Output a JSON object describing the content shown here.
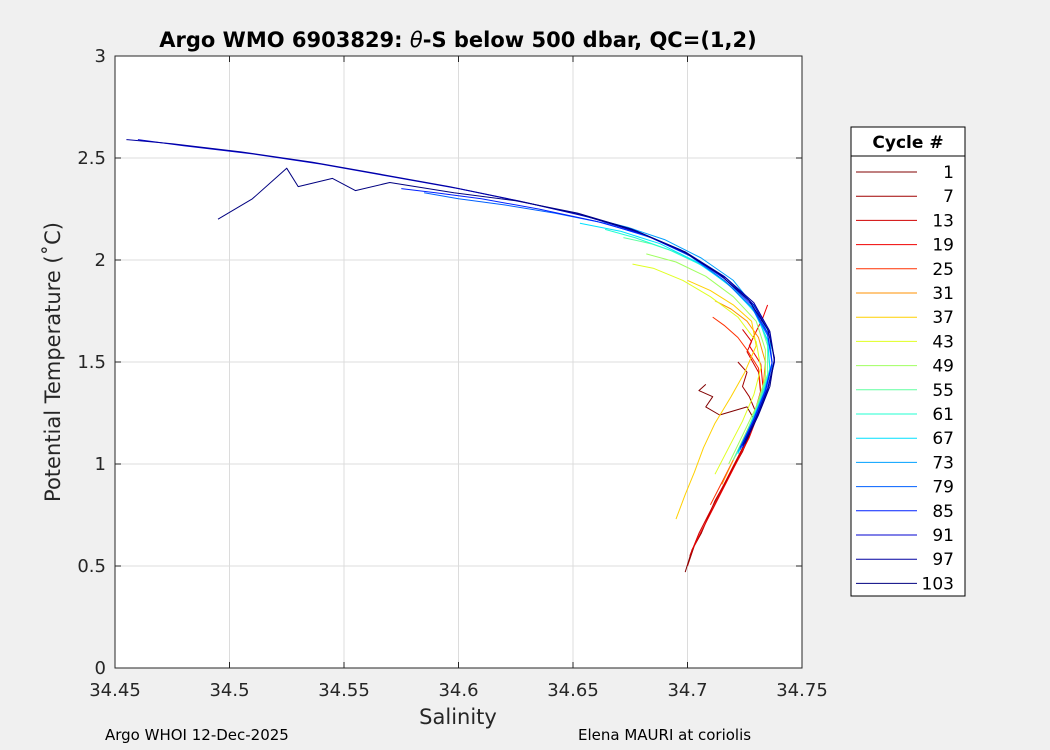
{
  "chart_data": {
    "type": "line",
    "title_prefix": "Argo WMO 6903829: ",
    "title_symbol": "θ",
    "title_suffix": "-S below 500 dbar,  QC=(1,2)",
    "xlabel": "Salinity",
    "ylabel": "Potential Temperature (˚C)",
    "xlim": [
      34.45,
      34.75
    ],
    "ylim": [
      0,
      3
    ],
    "xticks": [
      34.45,
      34.5,
      34.55,
      34.6,
      34.65,
      34.7,
      34.75
    ],
    "xtick_labels": [
      "34.45",
      "34.5",
      "34.55",
      "34.6",
      "34.65",
      "34.7",
      "34.75"
    ],
    "yticks": [
      0,
      0.5,
      1,
      1.5,
      2,
      2.5,
      3
    ],
    "ytick_labels": [
      "0",
      "0.5",
      "1",
      "1.5",
      "2",
      "2.5",
      "3"
    ],
    "grid": true,
    "legend_title": "Cycle #",
    "legend_position": "outside-right",
    "legend": [
      {
        "label": "1",
        "color": "#800000"
      },
      {
        "label": "7",
        "color": "#a00000"
      },
      {
        "label": "13",
        "color": "#d00000"
      },
      {
        "label": "19",
        "color": "#f00000"
      },
      {
        "label": "25",
        "color": "#ff3000"
      },
      {
        "label": "31",
        "color": "#ff9000"
      },
      {
        "label": "37",
        "color": "#ffd000"
      },
      {
        "label": "43",
        "color": "#e0ff20"
      },
      {
        "label": "49",
        "color": "#a0ff60"
      },
      {
        "label": "55",
        "color": "#60ffa0"
      },
      {
        "label": "61",
        "color": "#20ffd0"
      },
      {
        "label": "67",
        "color": "#00e0ff"
      },
      {
        "label": "73",
        "color": "#00a0ff"
      },
      {
        "label": "79",
        "color": "#0060ff"
      },
      {
        "label": "85",
        "color": "#0020ff"
      },
      {
        "label": "91",
        "color": "#0000d0"
      },
      {
        "label": "97",
        "color": "#0000a0"
      },
      {
        "label": "103",
        "color": "#000080"
      }
    ],
    "series": [
      {
        "name": "1",
        "color": "#800000",
        "s": [
          34.699,
          34.702,
          34.706,
          34.709,
          34.712,
          34.716,
          34.72,
          34.724,
          34.727,
          34.729,
          34.726,
          34.714,
          34.708,
          34.711,
          34.705,
          34.708
        ],
        "t": [
          0.47,
          0.58,
          0.66,
          0.74,
          0.82,
          0.9,
          0.98,
          1.06,
          1.14,
          1.22,
          1.28,
          1.24,
          1.28,
          1.33,
          1.36,
          1.39
        ]
      },
      {
        "name": "7",
        "color": "#a00000",
        "s": [
          34.7,
          34.703,
          34.707,
          34.711,
          34.715,
          34.719,
          34.723,
          34.727,
          34.73,
          34.727,
          34.724,
          34.726,
          34.722
        ],
        "t": [
          0.5,
          0.6,
          0.69,
          0.78,
          0.87,
          0.96,
          1.05,
          1.15,
          1.25,
          1.33,
          1.38,
          1.45,
          1.5
        ]
      },
      {
        "name": "13",
        "color": "#d00000",
        "s": [
          34.701,
          34.705,
          34.71,
          34.715,
          34.72,
          34.725,
          34.729,
          34.732,
          34.731,
          34.726,
          34.728,
          34.724
        ],
        "t": [
          0.55,
          0.66,
          0.77,
          0.88,
          0.99,
          1.1,
          1.22,
          1.34,
          1.45,
          1.55,
          1.6,
          1.66
        ]
      },
      {
        "name": "19",
        "color": "#f00000",
        "s": [
          34.702,
          34.707,
          34.712,
          34.717,
          34.722,
          34.727,
          34.731,
          34.733,
          34.732,
          34.727,
          34.73,
          34.733,
          34.735
        ],
        "t": [
          0.58,
          0.69,
          0.8,
          0.91,
          1.02,
          1.13,
          1.25,
          1.37,
          1.49,
          1.58,
          1.65,
          1.72,
          1.78
        ]
      },
      {
        "name": "25",
        "color": "#ff3000",
        "s": [
          34.71,
          34.715,
          34.72,
          34.725,
          34.729,
          34.732,
          34.731,
          34.726,
          34.722,
          34.716,
          34.711
        ],
        "t": [
          0.8,
          0.91,
          1.02,
          1.13,
          1.24,
          1.36,
          1.47,
          1.56,
          1.62,
          1.68,
          1.72
        ]
      },
      {
        "name": "31",
        "color": "#ff9000",
        "s": [
          34.715,
          34.72,
          34.725,
          34.73,
          34.733,
          34.734,
          34.731,
          34.726,
          34.719,
          34.712
        ],
        "t": [
          0.9,
          1.02,
          1.14,
          1.26,
          1.38,
          1.5,
          1.62,
          1.7,
          1.76,
          1.8
        ]
      },
      {
        "name": "37",
        "color": "#ffd000",
        "s": [
          34.695,
          34.699,
          34.703,
          34.707,
          34.712,
          34.719,
          34.725,
          34.73,
          34.728,
          34.72,
          34.71,
          34.7
        ],
        "t": [
          0.73,
          0.85,
          0.96,
          1.08,
          1.2,
          1.33,
          1.45,
          1.58,
          1.7,
          1.78,
          1.85,
          1.9
        ]
      },
      {
        "name": "43",
        "color": "#e0ff20",
        "s": [
          34.712,
          34.718,
          34.724,
          34.729,
          34.732,
          34.73,
          34.722,
          34.71,
          34.698,
          34.685,
          34.676
        ],
        "t": [
          0.95,
          1.08,
          1.21,
          1.34,
          1.47,
          1.6,
          1.72,
          1.82,
          1.9,
          1.96,
          1.98
        ]
      },
      {
        "name": "49",
        "color": "#a0ff60",
        "s": [
          34.718,
          34.724,
          34.73,
          34.734,
          34.734,
          34.73,
          34.72,
          34.708,
          34.695,
          34.682
        ],
        "t": [
          1.0,
          1.14,
          1.28,
          1.42,
          1.56,
          1.7,
          1.82,
          1.92,
          1.99,
          2.03
        ]
      },
      {
        "name": "55",
        "color": "#60ffa0",
        "s": [
          34.72,
          34.726,
          34.731,
          34.735,
          34.735,
          34.731,
          34.722,
          34.71,
          34.697,
          34.684,
          34.672
        ],
        "t": [
          1.02,
          1.16,
          1.3,
          1.44,
          1.58,
          1.72,
          1.84,
          1.95,
          2.03,
          2.08,
          2.11
        ]
      },
      {
        "name": "61",
        "color": "#20ffd0",
        "s": [
          34.721,
          34.727,
          34.732,
          34.736,
          34.735,
          34.73,
          34.72,
          34.707,
          34.692,
          34.677,
          34.664
        ],
        "t": [
          1.04,
          1.18,
          1.32,
          1.46,
          1.6,
          1.74,
          1.86,
          1.97,
          2.05,
          2.11,
          2.15
        ]
      },
      {
        "name": "67",
        "color": "#00e0ff",
        "s": [
          34.722,
          34.728,
          34.733,
          34.736,
          34.735,
          34.729,
          34.718,
          34.704,
          34.688,
          34.671,
          34.653
        ],
        "t": [
          1.05,
          1.19,
          1.33,
          1.47,
          1.61,
          1.75,
          1.88,
          1.99,
          2.08,
          2.14,
          2.18
        ]
      },
      {
        "name": "73",
        "color": "#00a0ff",
        "s": [
          34.722,
          34.728,
          34.733,
          34.737,
          34.736,
          34.73,
          34.72,
          34.706,
          34.69,
          34.674,
          34.66,
          34.65
        ],
        "t": [
          1.06,
          1.2,
          1.34,
          1.48,
          1.62,
          1.76,
          1.9,
          2.01,
          2.1,
          2.16,
          2.2,
          2.23
        ]
      },
      {
        "name": "79",
        "color": "#0060ff",
        "s": [
          34.723,
          34.729,
          34.734,
          34.737,
          34.735,
          34.728,
          34.716,
          34.701,
          34.684,
          34.664,
          34.642,
          34.62,
          34.6,
          34.585
        ],
        "t": [
          1.07,
          1.21,
          1.35,
          1.49,
          1.63,
          1.77,
          1.9,
          2.02,
          2.11,
          2.18,
          2.23,
          2.27,
          2.3,
          2.33
        ]
      },
      {
        "name": "85",
        "color": "#0020ff",
        "s": [
          34.723,
          34.729,
          34.734,
          34.737,
          34.735,
          34.728,
          34.716,
          34.7,
          34.682,
          34.66,
          34.635,
          34.61,
          34.59,
          34.575
        ],
        "t": [
          1.08,
          1.22,
          1.36,
          1.5,
          1.64,
          1.78,
          1.91,
          2.03,
          2.12,
          2.19,
          2.25,
          2.3,
          2.33,
          2.35
        ]
      },
      {
        "name": "91",
        "color": "#0000d0",
        "s": [
          34.724,
          34.73,
          34.735,
          34.738,
          34.736,
          34.729,
          34.717,
          34.7,
          34.68,
          34.657,
          34.63,
          34.6,
          34.57,
          34.54,
          34.51,
          34.48,
          34.46
        ],
        "t": [
          1.08,
          1.22,
          1.36,
          1.5,
          1.64,
          1.78,
          1.91,
          2.03,
          2.13,
          2.21,
          2.28,
          2.35,
          2.41,
          2.47,
          2.52,
          2.56,
          2.59
        ]
      },
      {
        "name": "97",
        "color": "#0000a0",
        "s": [
          34.724,
          34.73,
          34.735,
          34.738,
          34.736,
          34.729,
          34.716,
          34.699,
          34.678,
          34.654,
          34.626,
          34.596,
          34.566,
          34.536,
          34.505,
          34.475,
          34.455
        ],
        "t": [
          1.09,
          1.23,
          1.37,
          1.51,
          1.65,
          1.79,
          1.92,
          2.04,
          2.14,
          2.22,
          2.29,
          2.36,
          2.42,
          2.48,
          2.53,
          2.57,
          2.59
        ]
      },
      {
        "name": "103",
        "color": "#000080",
        "s": [
          34.725,
          34.731,
          34.736,
          34.738,
          34.735,
          34.727,
          34.714,
          34.697,
          34.676,
          34.652,
          34.625,
          34.598,
          34.57,
          34.555,
          34.545,
          34.53,
          34.525,
          34.51,
          34.495
        ],
        "t": [
          1.1,
          1.24,
          1.38,
          1.52,
          1.66,
          1.8,
          1.93,
          2.05,
          2.15,
          2.23,
          2.29,
          2.33,
          2.38,
          2.34,
          2.4,
          2.36,
          2.45,
          2.3,
          2.2
        ]
      }
    ]
  },
  "footer": {
    "left": "Argo WHOI 12-Dec-2025",
    "right": "Elena MAURI at coriolis"
  }
}
